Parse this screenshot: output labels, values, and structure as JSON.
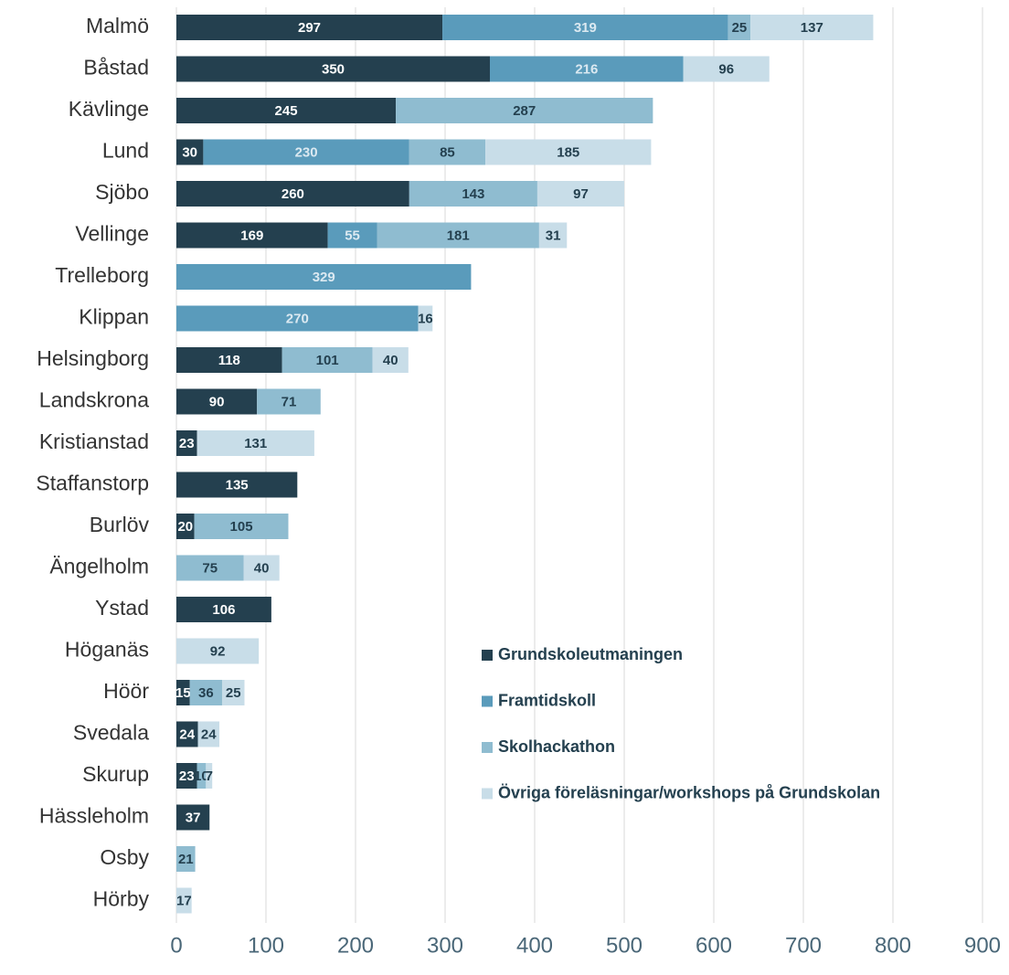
{
  "chart_data": {
    "type": "stacked-barh",
    "categories": [
      "Malmö",
      "Båstad",
      "Kävlinge",
      "Lund",
      "Sjöbo",
      "Vellinge",
      "Trelleborg",
      "Klippan",
      "Helsingborg",
      "Landskrona",
      "Kristianstad",
      "Staffanstorp",
      "Burlöv",
      "Ängelholm",
      "Ystad",
      "Höganäs",
      "Höör",
      "Svedala",
      "Skurup",
      "Hässleholm",
      "Osby",
      "Hörby"
    ],
    "series": [
      {
        "name": "Grundskoleutmaningen",
        "color": "#24404f",
        "values": [
          297,
          350,
          245,
          30,
          260,
          169,
          null,
          null,
          118,
          90,
          23,
          135,
          20,
          null,
          106,
          null,
          15,
          24,
          23,
          37,
          null,
          null
        ]
      },
      {
        "name": "Framtidskoll",
        "color": "#5a9bbb",
        "values": [
          319,
          216,
          null,
          230,
          null,
          55,
          329,
          270,
          null,
          null,
          null,
          null,
          null,
          null,
          null,
          null,
          null,
          null,
          null,
          null,
          null,
          null
        ]
      },
      {
        "name": "Skolhackathon",
        "color": "#8fbcd0",
        "values": [
          25,
          null,
          287,
          85,
          143,
          181,
          null,
          null,
          101,
          71,
          null,
          null,
          105,
          75,
          null,
          null,
          36,
          null,
          10,
          null,
          21,
          null
        ]
      },
      {
        "name": "Övriga föreläsningar/workshops på Grundskolan",
        "color": "#c8dde8",
        "values": [
          137,
          96,
          null,
          185,
          97,
          31,
          null,
          16,
          40,
          null,
          131,
          null,
          null,
          40,
          null,
          92,
          25,
          24,
          7,
          null,
          null,
          17
        ]
      }
    ],
    "xlim": [
      0,
      900
    ],
    "xticks": [
      0,
      100,
      200,
      300,
      400,
      500,
      600,
      700,
      800,
      900
    ],
    "grid": true
  }
}
